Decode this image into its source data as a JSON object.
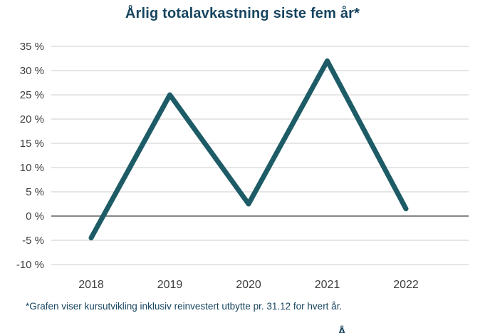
{
  "chart_data": {
    "type": "line",
    "title": "Årlig totalavkastning siste fem år*",
    "categories": [
      "2018",
      "2019",
      "2020",
      "2021",
      "2022"
    ],
    "series": [
      {
        "name": "Årlig totalavkastning",
        "values": [
          -4.5,
          25,
          2.5,
          32,
          1.5
        ]
      }
    ],
    "ylim": [
      -10,
      35
    ],
    "ytick_step": 5,
    "ytick_suffix": " %",
    "grid": true,
    "legend": "none",
    "footnote": "*Grafen viser kursutvikling inklusiv reinvestert utbytte pr. 31.12 for hvert år.",
    "colors": {
      "line": "#1d5c66",
      "title": "#17455f",
      "footnote": "#17455f",
      "grid": "#cccccc",
      "zero_line": "#5e5e5e",
      "tick_text": "#3d3d3d"
    }
  },
  "partial_text_bottom": "Å"
}
